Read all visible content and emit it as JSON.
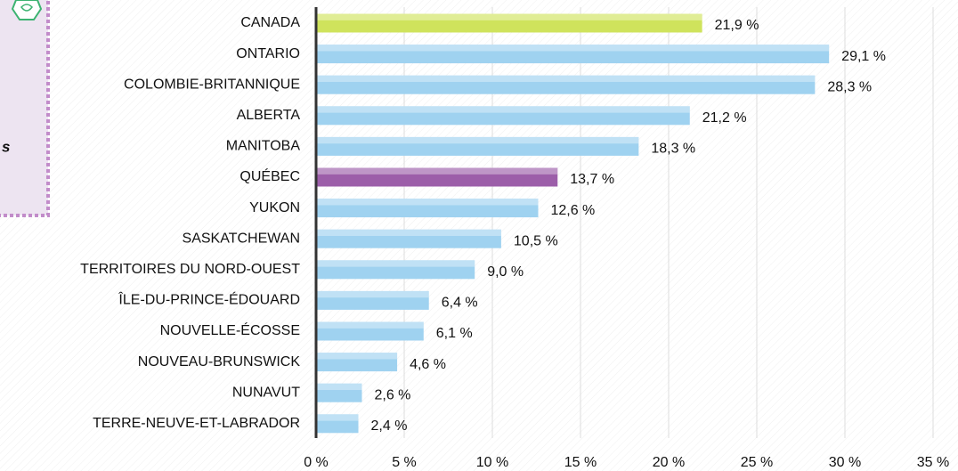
{
  "sidebar": {
    "text": "s"
  },
  "chart_data": {
    "type": "bar",
    "orientation": "horizontal",
    "categories": [
      "CANADA",
      "ONTARIO",
      "COLOMBIE-BRITANNIQUE",
      "ALBERTA",
      "MANITOBA",
      "QUÉBEC",
      "YUKON",
      "SASKATCHEWAN",
      "TERRITOIRES DU NORD-OUEST",
      "ÎLE-DU-PRINCE-ÉDOUARD",
      "NOUVELLE-ÉCOSSE",
      "NOUVEAU-BRUNSWICK",
      "NUNAVUT",
      "TERRE-NEUVE-ET-LABRADOR"
    ],
    "values": [
      21.9,
      29.1,
      28.3,
      21.2,
      18.3,
      13.7,
      12.6,
      10.5,
      9.0,
      6.4,
      6.1,
      4.6,
      2.6,
      2.4
    ],
    "value_labels": [
      "21,9 %",
      "29,1 %",
      "28,3 %",
      "21,2 %",
      "18,3 %",
      "13,7 %",
      "12,6 %",
      "10,5 %",
      "9,0 %",
      "6,4 %",
      "6,1 %",
      "4,6 %",
      "2,6 %",
      "2,4 %"
    ],
    "colors": [
      "#cfe35c",
      "#9fd2f0",
      "#9fd2f0",
      "#9fd2f0",
      "#9fd2f0",
      "#9c5ea9",
      "#9fd2f0",
      "#9fd2f0",
      "#9fd2f0",
      "#9fd2f0",
      "#9fd2f0",
      "#9fd2f0",
      "#9fd2f0",
      "#9fd2f0"
    ],
    "xlim": [
      0,
      35
    ],
    "xticks": [
      {
        "value": 0,
        "label": "0 %"
      },
      {
        "value": 5,
        "label": "5 %"
      },
      {
        "value": 10,
        "label": "10 %"
      },
      {
        "value": 15,
        "label": "15 %"
      },
      {
        "value": 20,
        "label": "20 %"
      },
      {
        "value": 25,
        "label": "25 %"
      },
      {
        "value": 30,
        "label": "30 %"
      },
      {
        "value": 35,
        "label": "35 %"
      }
    ],
    "grid": true
  }
}
